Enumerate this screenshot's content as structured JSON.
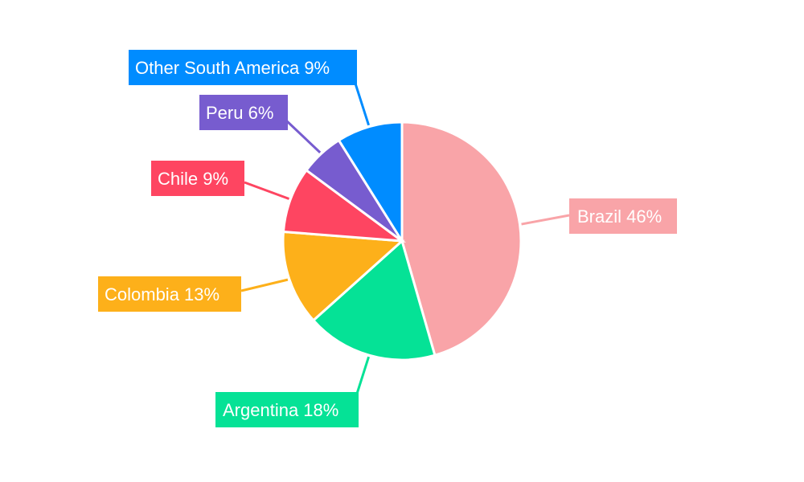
{
  "chart_data": {
    "type": "pie",
    "title": "",
    "slices": [
      {
        "label": "Brazil 46%",
        "name": "Brazil",
        "value": 46,
        "color": "#f9a4a8"
      },
      {
        "label": "Argentina 18%",
        "name": "Argentina",
        "value": 18,
        "color": "#05e296"
      },
      {
        "label": "Colombia 13%",
        "name": "Colombia",
        "value": 13,
        "color": "#fdb01a"
      },
      {
        "label": "Chile 9%",
        "name": "Chile",
        "value": 9,
        "color": "#fe4561"
      },
      {
        "label": "Peru 6%",
        "name": "Peru",
        "value": 6,
        "color": "#775ccf"
      },
      {
        "label": "Other South America 9%",
        "name": "Other South America",
        "value": 9,
        "color": "#008cff"
      }
    ]
  }
}
